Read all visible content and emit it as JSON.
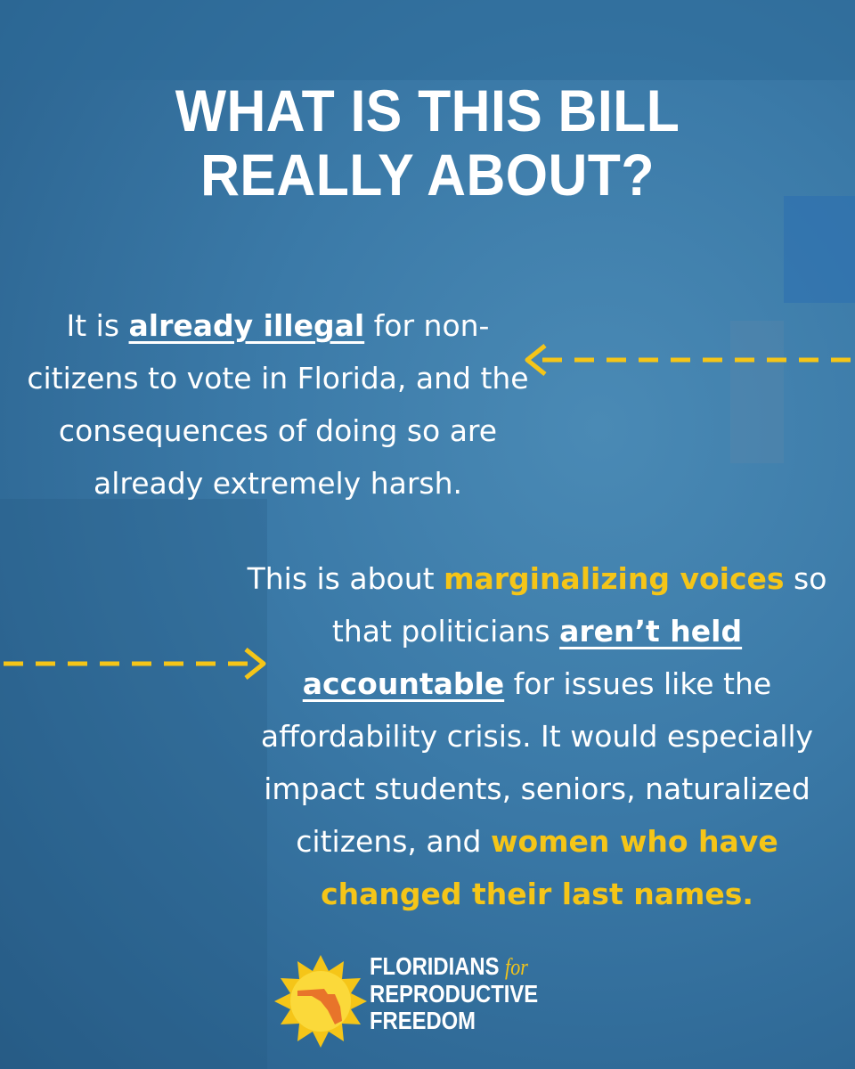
{
  "header": {
    "title_lines": [
      "WHAT IS THIS BILL",
      "REALLY ABOUT?"
    ]
  },
  "paragraphs": [
    {
      "segments": [
        {
          "text": "It is ",
          "style": "plain"
        },
        {
          "text": "already illegal",
          "style": "underline"
        },
        {
          "text": " for non-citizens to vote in Florida, and the consequences of doing so are already extremely harsh.",
          "style": "plain"
        }
      ]
    },
    {
      "segments": [
        {
          "text": "This is about ",
          "style": "plain"
        },
        {
          "text": "marginalizing voices",
          "style": "highlight"
        },
        {
          "text": " so that politicians ",
          "style": "plain"
        },
        {
          "text": "aren’t held accountable",
          "style": "underline"
        },
        {
          "text": " for issues like the affordability crisis. It would especially impact students, seniors, naturalized citizens, and ",
          "style": "plain"
        },
        {
          "text": "women who have changed their last names.",
          "style": "highlight"
        }
      ]
    }
  ],
  "logo": {
    "line1": "FLORIDIANS",
    "for": "for",
    "line2": "REPRODUCTIVE",
    "line3": "FREEDOM"
  }
}
